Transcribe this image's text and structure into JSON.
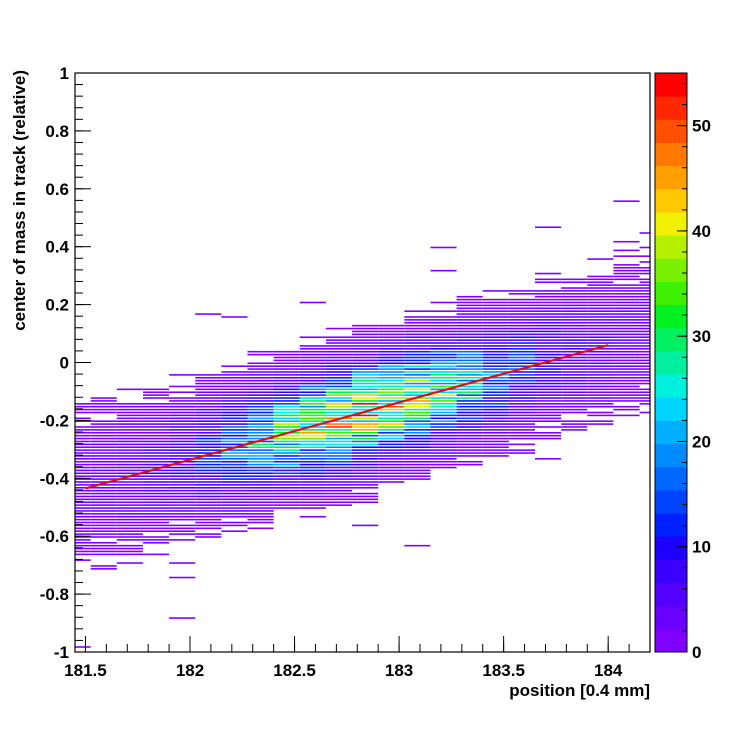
{
  "chart_data": {
    "type": "heatmap",
    "title": "",
    "xlabel": "position [0.4 mm]",
    "ylabel": "center of mass in track (relative)",
    "xlim": [
      181.45,
      184.2
    ],
    "ylim": [
      -1,
      1
    ],
    "x_ticks": [
      "181.5",
      "182",
      "182.5",
      "183",
      "183.5",
      "184"
    ],
    "y_ticks": [
      "-1",
      "-0.8",
      "-0.6",
      "-0.4",
      "-0.2",
      "0",
      "0.2",
      "0.4",
      "0.6",
      "0.8",
      "1"
    ],
    "colorbar": {
      "range": [
        0,
        55
      ],
      "ticks": [
        "0",
        "10",
        "20",
        "30",
        "40",
        "50"
      ],
      "palette": [
        "#7f00ff",
        "#6a00ff",
        "#5200ff",
        "#3a00ff",
        "#1e00ff",
        "#0020ff",
        "#0044ff",
        "#0068ff",
        "#008cff",
        "#00b0ff",
        "#00d4ff",
        "#00f0e0",
        "#00f0a0",
        "#00f060",
        "#00f020",
        "#3cf000",
        "#78f000",
        "#b4f000",
        "#f0f000",
        "#ffc800",
        "#ffa000",
        "#ff7800",
        "#ff5000",
        "#ff2800",
        "#ff0000"
      ]
    },
    "density_model": {
      "peak_count": 38,
      "peak_x": 182.85,
      "x_spread": 0.45,
      "y_spread": 0.09,
      "y_tail_spread": 0.2
    },
    "fit_line": {
      "name": "",
      "color": "#dd1111",
      "x": [
        181.5,
        184.0
      ],
      "y": [
        -0.435,
        0.06
      ]
    },
    "grid": false,
    "legend": "none"
  }
}
